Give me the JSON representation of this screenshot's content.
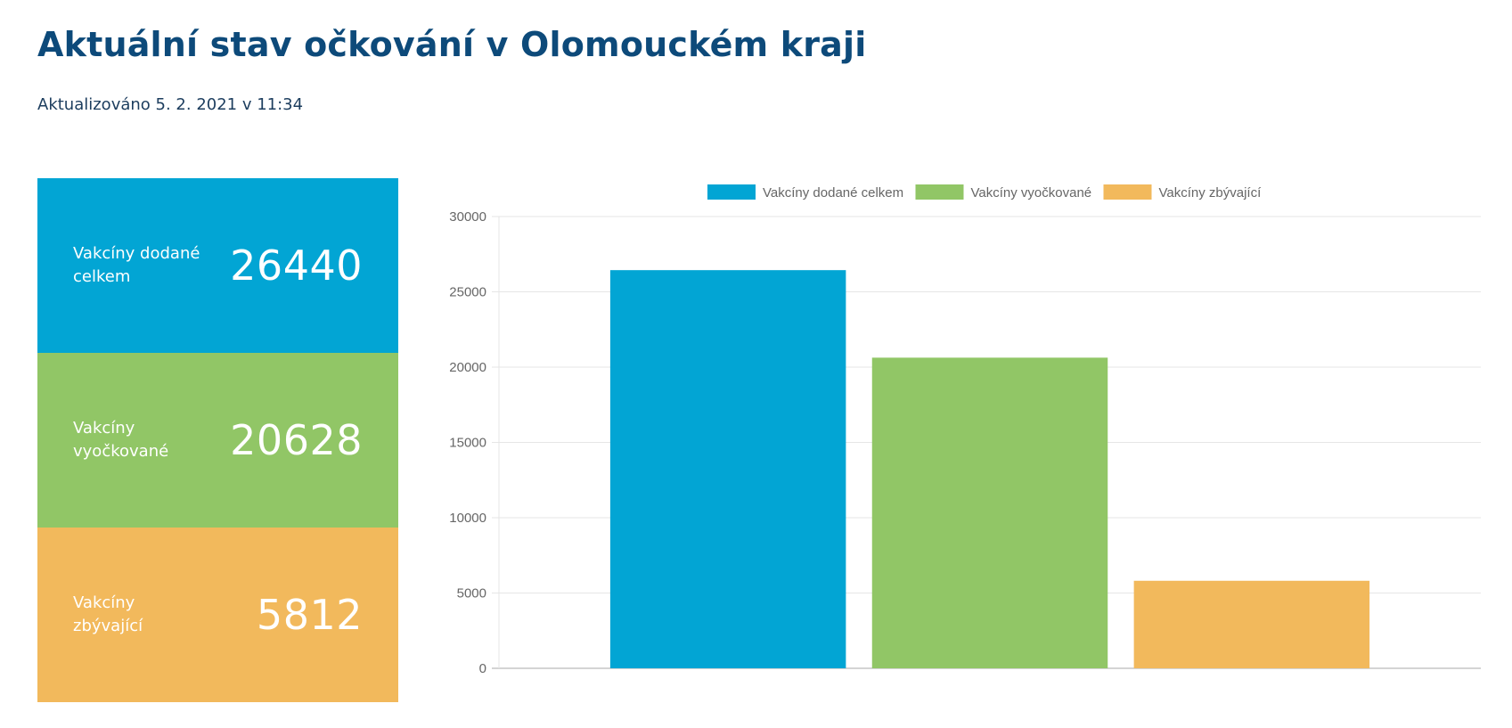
{
  "page": {
    "title": "Aktuální stav očkování v Olomouckém kraji",
    "updated": "Aktualizováno 5. 2. 2021 v 11:34"
  },
  "stats": [
    {
      "label": "Vakcíny dodané celkem",
      "value": "26440",
      "color": "#02a5d4"
    },
    {
      "label": "Vakcíny vyočkované",
      "value": "20628",
      "color": "#91c666"
    },
    {
      "label": "Vakcíny zbývající",
      "value": "5812",
      "color": "#f2b95c"
    }
  ],
  "chart_data": {
    "type": "bar",
    "title": "",
    "xlabel": "",
    "ylabel": "",
    "ylim": [
      0,
      30000
    ],
    "yticks": [
      "0",
      "5000",
      "10000",
      "15000",
      "20000",
      "25000",
      "30000"
    ],
    "grid": true,
    "legend_position": "top",
    "series": [
      {
        "name": "Vakcíny dodané celkem",
        "values": [
          26440
        ],
        "color": "#02a5d4"
      },
      {
        "name": "Vakcíny vyočkované",
        "values": [
          20628
        ],
        "color": "#91c666"
      },
      {
        "name": "Vakcíny zbývající",
        "values": [
          5812
        ],
        "color": "#f2b95c"
      }
    ]
  }
}
